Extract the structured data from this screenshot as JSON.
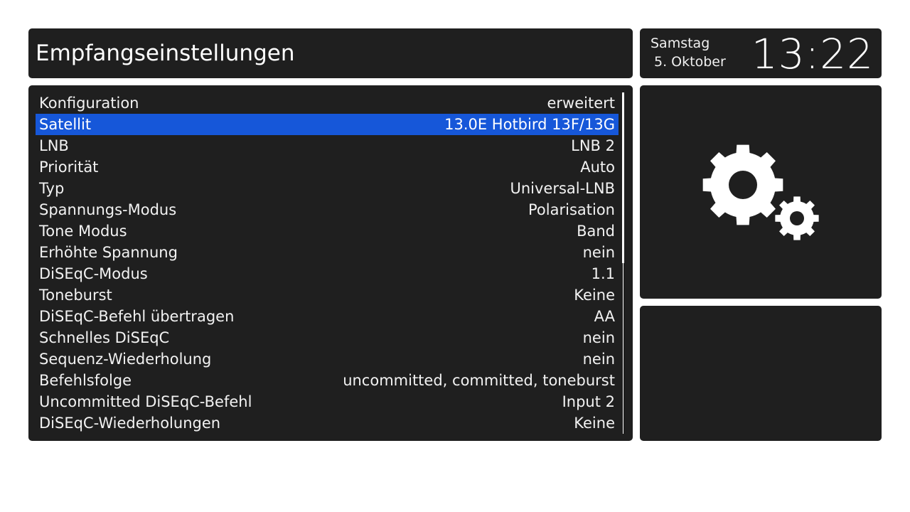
{
  "header": {
    "title": "Empfangseinstellungen"
  },
  "clock": {
    "day": "Samstag",
    "date": "5. Oktober",
    "time": "13:22"
  },
  "settings": {
    "selected_index": 1,
    "rows": [
      {
        "label": "Konfiguration",
        "value": "erweitert"
      },
      {
        "label": "Satellit",
        "value": "13.0E Hotbird 13F/13G"
      },
      {
        "label": "LNB",
        "value": "LNB 2"
      },
      {
        "label": "Priorität",
        "value": "Auto"
      },
      {
        "label": "Typ",
        "value": "Universal-LNB"
      },
      {
        "label": "Spannungs-Modus",
        "value": "Polarisation"
      },
      {
        "label": "Tone Modus",
        "value": "Band"
      },
      {
        "label": "Erhöhte Spannung",
        "value": "nein"
      },
      {
        "label": "DiSEqC-Modus",
        "value": "1.1"
      },
      {
        "label": "Toneburst",
        "value": "Keine"
      },
      {
        "label": "DiSEqC-Befehl übertragen",
        "value": "AA"
      },
      {
        "label": "Schnelles DiSEqC",
        "value": "nein"
      },
      {
        "label": "Sequenz-Wiederholung",
        "value": "nein"
      },
      {
        "label": "Befehlsfolge",
        "value": "uncommitted, committed, toneburst"
      },
      {
        "label": "Uncommitted DiSEqC-Befehl",
        "value": "Input 2"
      },
      {
        "label": "DiSEqC-Wiederholungen",
        "value": "Keine"
      }
    ]
  },
  "icons": {
    "settings": "gears-icon"
  },
  "colors": {
    "panel": "#1f1f1f",
    "selection": "#1657d9",
    "text": "#ffffff"
  }
}
